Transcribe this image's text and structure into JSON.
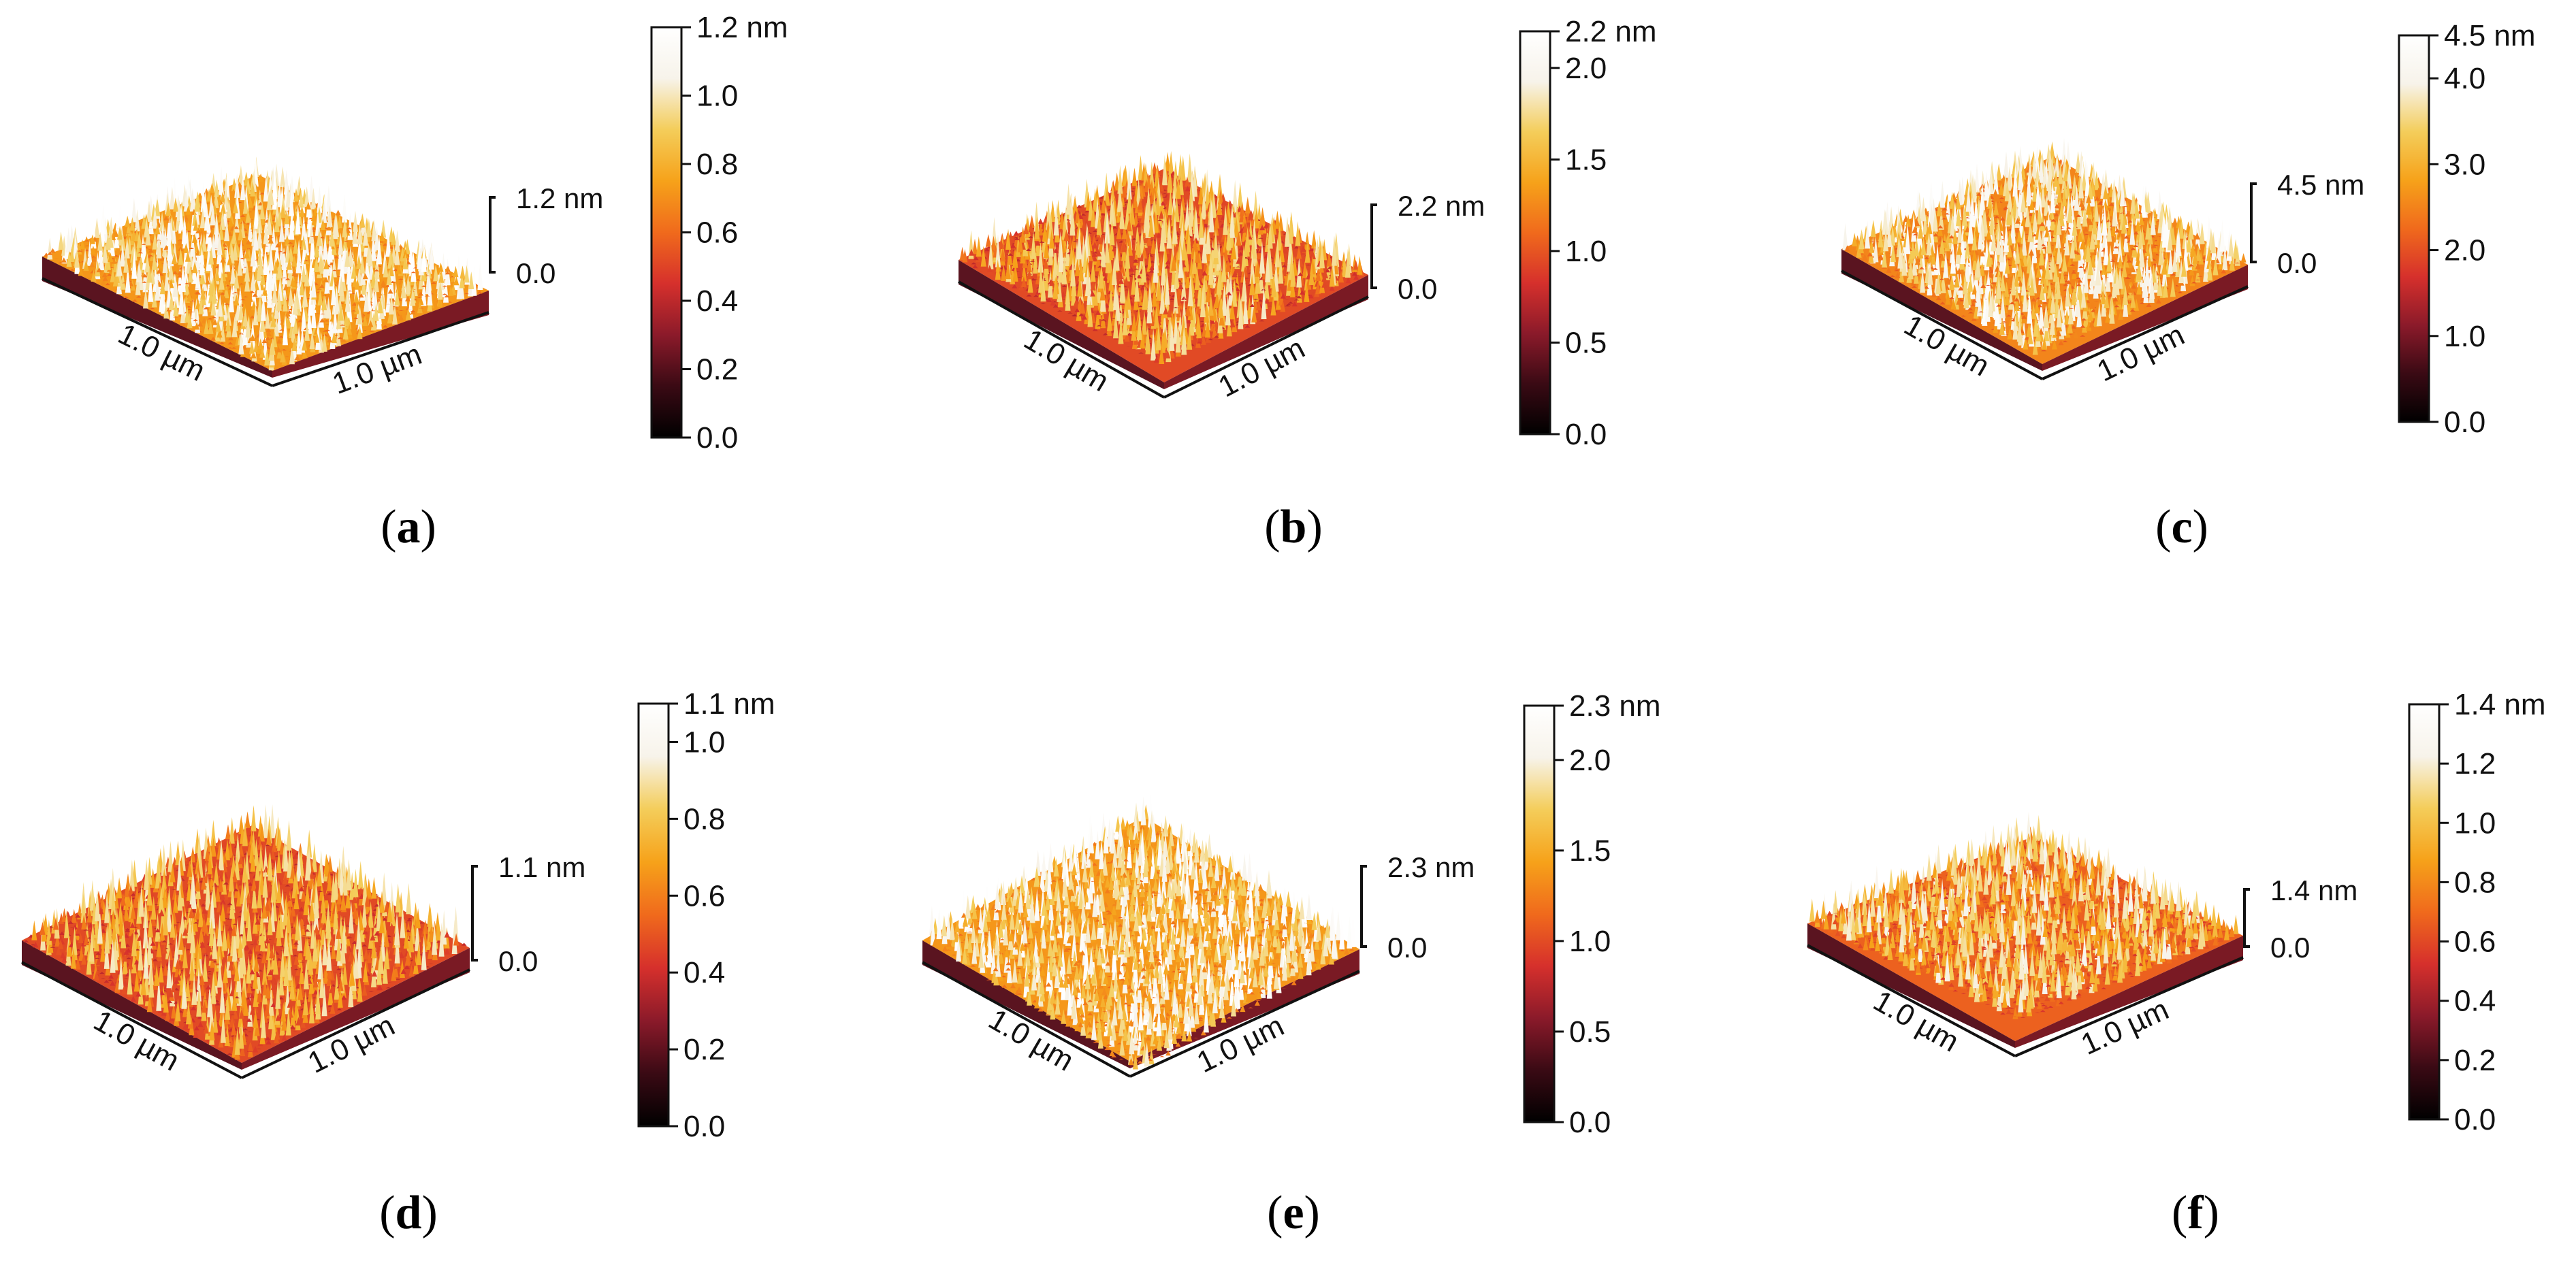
{
  "chart_data": [
    {
      "type": "surface3d",
      "panel": "a",
      "caption_letter": "a",
      "z_max_label": "1.2 nm",
      "z_min_label": "0.0",
      "x_label": "1.0 µm",
      "y_label": "1.0 µm",
      "zlim": [
        0,
        1.2
      ],
      "colorbar": {
        "top_label": "1.2 nm",
        "ticks": [
          "0.0",
          "0.2",
          "0.4",
          "0.6",
          "0.8",
          "1.0"
        ],
        "tick_values": [
          0,
          0.2,
          0.4,
          0.6,
          0.8,
          1.0
        ],
        "max": 1.2
      }
    },
    {
      "type": "surface3d",
      "panel": "b",
      "caption_letter": "b",
      "z_max_label": "2.2 nm",
      "z_min_label": "0.0",
      "x_label": "1.0 µm",
      "y_label": "1.0 µm",
      "zlim": [
        0,
        2.2
      ],
      "colorbar": {
        "top_label": "2.2 nm",
        "ticks": [
          "0.0",
          "0.5",
          "1.0",
          "1.5",
          "2.0"
        ],
        "tick_values": [
          0,
          0.5,
          1.0,
          1.5,
          2.0
        ],
        "max": 2.2
      }
    },
    {
      "type": "surface3d",
      "panel": "c",
      "caption_letter": "c",
      "z_max_label": "4.5 nm",
      "z_min_label": "0.0",
      "x_label": "1.0 µm",
      "y_label": "1.0 µm",
      "zlim": [
        0,
        4.5
      ],
      "colorbar": {
        "top_label": "4.5 nm",
        "ticks": [
          "0.0",
          "1.0",
          "2.0",
          "3.0",
          "4.0"
        ],
        "tick_values": [
          0,
          1.0,
          2.0,
          3.0,
          4.0
        ],
        "max": 4.5
      }
    },
    {
      "type": "surface3d",
      "panel": "d",
      "caption_letter": "d",
      "z_max_label": "1.1 nm",
      "z_min_label": "0.0",
      "x_label": "1.0 µm",
      "y_label": "1.0 µm",
      "zlim": [
        0,
        1.1
      ],
      "colorbar": {
        "top_label": "1.1 nm",
        "ticks": [
          "0.0",
          "0.2",
          "0.4",
          "0.6",
          "0.8",
          "1.0"
        ],
        "tick_values": [
          0,
          0.2,
          0.4,
          0.6,
          0.8,
          1.0
        ],
        "max": 1.1
      }
    },
    {
      "type": "surface3d",
      "panel": "e",
      "caption_letter": "e",
      "z_max_label": "2.3 nm",
      "z_min_label": "0.0",
      "x_label": "1.0 µm",
      "y_label": "1.0 µm",
      "zlim": [
        0,
        2.3
      ],
      "colorbar": {
        "top_label": "2.3 nm",
        "ticks": [
          "0.0",
          "0.5",
          "1.0",
          "1.5",
          "2.0"
        ],
        "tick_values": [
          0,
          0.5,
          1.0,
          1.5,
          2.0
        ],
        "max": 2.3
      }
    },
    {
      "type": "surface3d",
      "panel": "f",
      "caption_letter": "f",
      "z_max_label": "1.4 nm",
      "z_min_label": "0.0",
      "x_label": "1.0 µm",
      "y_label": "1.0 µm",
      "zlim": [
        0,
        1.4
      ],
      "colorbar": {
        "top_label": "1.4 nm",
        "ticks": [
          "0.0",
          "0.2",
          "0.4",
          "0.6",
          "0.8",
          "1.0",
          "1.2"
        ],
        "tick_values": [
          0,
          0.2,
          0.4,
          0.6,
          0.8,
          1.0,
          1.2
        ],
        "max": 1.4
      }
    }
  ],
  "colormap": {
    "name": "afmhot",
    "stops": [
      "#000000",
      "#3a0a14",
      "#8b1a2a",
      "#d6302c",
      "#f06a1c",
      "#f6a21a",
      "#f4cd5a",
      "#f7f3ea",
      "#ffffff"
    ]
  }
}
